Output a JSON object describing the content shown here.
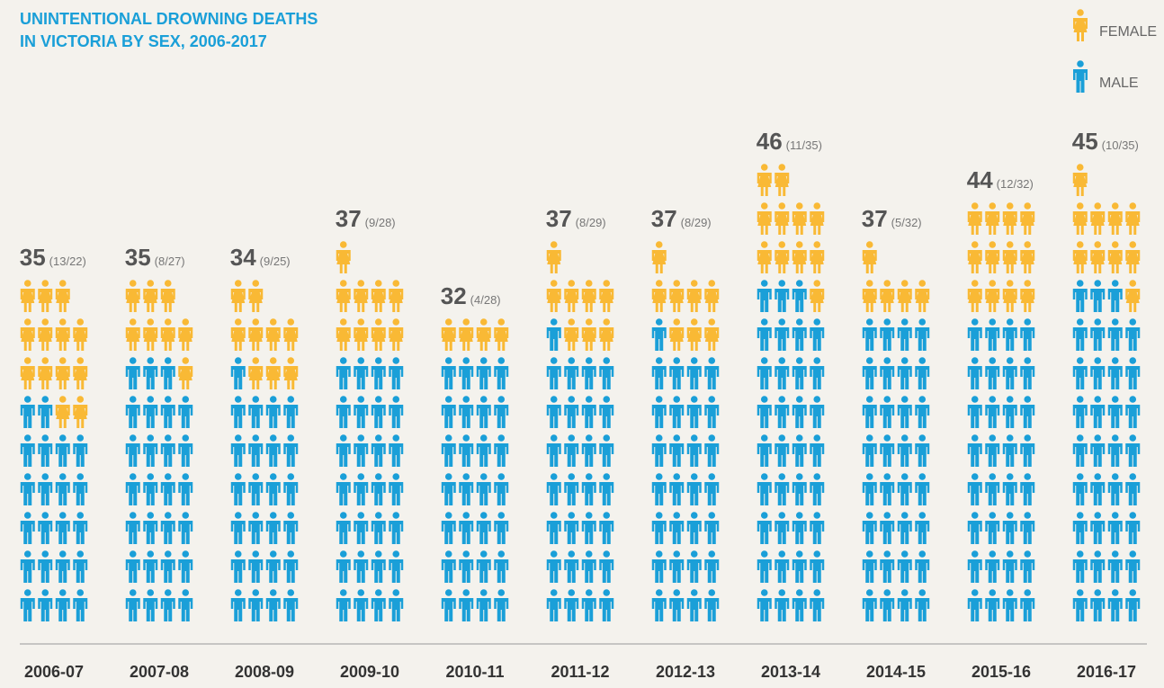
{
  "chart_data": {
    "type": "pictograph",
    "title": [
      "UNINTENTIONAL DROWNING DEATHS",
      "IN VICTORIA BY SEX, 2006-2017"
    ],
    "categories": [
      "2006-07",
      "2007-08",
      "2008-09",
      "2009-10",
      "2010-11",
      "2011-12",
      "2012-13",
      "2013-14",
      "2014-15",
      "2015-16",
      "2016-17"
    ],
    "totals": [
      35,
      35,
      34,
      37,
      32,
      37,
      37,
      46,
      37,
      44,
      45
    ],
    "breakdown_labels": [
      "(13/22)",
      "(8/27)",
      "(9/25)",
      "(9/28)",
      "(4/28)",
      "(8/29)",
      "(8/29)",
      "(11/35)",
      "(5/32)",
      "(12/32)",
      "(10/35)"
    ],
    "series": [
      {
        "name": "FEMALE",
        "color": "#f9b935",
        "values": [
          13,
          8,
          9,
          9,
          4,
          8,
          8,
          11,
          5,
          12,
          10
        ]
      },
      {
        "name": "MALE",
        "color": "#1a9fd8",
        "values": [
          22,
          27,
          25,
          28,
          28,
          29,
          29,
          35,
          32,
          32,
          35
        ]
      }
    ],
    "icons_per_row": 4
  }
}
